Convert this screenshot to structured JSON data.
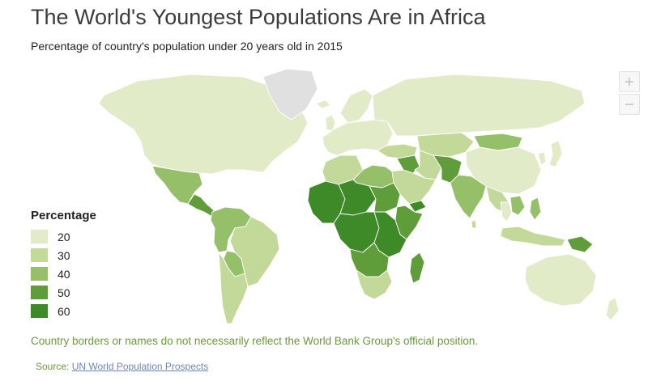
{
  "title": "The World's Youngest Populations Are in Africa",
  "subtitle": "Percentage of country's population under 20 years old in 2015",
  "legend": {
    "title": "Percentage",
    "items": [
      {
        "label": "20",
        "color": "#e2ebc8"
      },
      {
        "label": "30",
        "color": "#c2d99a"
      },
      {
        "label": "40",
        "color": "#96bf6a"
      },
      {
        "label": "50",
        "color": "#5e9d3a"
      },
      {
        "label": "60",
        "color": "#3f8a28"
      }
    ]
  },
  "zoom": {
    "in_icon": "zoom-in-icon",
    "out_icon": "zoom-out-icon"
  },
  "disclaimer": "Country borders or names do not necessarily reflect the World Bank Group's official position.",
  "source": {
    "prefix": "Source:",
    "link_text": "UN World Population Prospects"
  },
  "colors": {
    "accent_text": "#6a9a3c",
    "link": "#6b89b8",
    "no_data": "#e0e0e0",
    "border": "#ffffff"
  },
  "regions": [
    {
      "name": "north-america",
      "bin": 0
    },
    {
      "name": "greenland",
      "bin": -1
    },
    {
      "name": "mexico",
      "bin": 2
    },
    {
      "name": "central-america",
      "bin": 3
    },
    {
      "name": "south-america-north",
      "bin": 2
    },
    {
      "name": "brazil",
      "bin": 1
    },
    {
      "name": "south-america-south",
      "bin": 1
    },
    {
      "name": "bolivia-paraguay",
      "bin": 2
    },
    {
      "name": "europe",
      "bin": 0
    },
    {
      "name": "iceland",
      "bin": 0
    },
    {
      "name": "uk-ireland",
      "bin": 0
    },
    {
      "name": "scandinavia",
      "bin": 0
    },
    {
      "name": "russia",
      "bin": 0
    },
    {
      "name": "turkey-caucasus",
      "bin": 1
    },
    {
      "name": "central-asia",
      "bin": 1
    },
    {
      "name": "mongolia",
      "bin": 2
    },
    {
      "name": "china",
      "bin": 0
    },
    {
      "name": "korea",
      "bin": 0
    },
    {
      "name": "japan",
      "bin": 0
    },
    {
      "name": "middle-east",
      "bin": 1
    },
    {
      "name": "iraq-syria",
      "bin": 3
    },
    {
      "name": "iran",
      "bin": 1
    },
    {
      "name": "afghanistan-pakistan",
      "bin": 3
    },
    {
      "name": "india",
      "bin": 2
    },
    {
      "name": "sri-lanka",
      "bin": 1
    },
    {
      "name": "southeast-asia",
      "bin": 1
    },
    {
      "name": "thailand",
      "bin": 0
    },
    {
      "name": "laos-cambodia",
      "bin": 2
    },
    {
      "name": "philippines",
      "bin": 2
    },
    {
      "name": "indonesia",
      "bin": 1
    },
    {
      "name": "papua-new-guinea",
      "bin": 3
    },
    {
      "name": "australia",
      "bin": 0
    },
    {
      "name": "new-zealand",
      "bin": 0
    },
    {
      "name": "north-africa",
      "bin": 1
    },
    {
      "name": "egypt-libya",
      "bin": 2
    },
    {
      "name": "west-africa",
      "bin": 4
    },
    {
      "name": "sahel",
      "bin": 4
    },
    {
      "name": "sudan",
      "bin": 3
    },
    {
      "name": "horn-of-africa",
      "bin": 3
    },
    {
      "name": "yemen",
      "bin": 4
    },
    {
      "name": "central-africa",
      "bin": 4
    },
    {
      "name": "east-africa",
      "bin": 4
    },
    {
      "name": "southern-africa-mid",
      "bin": 3
    },
    {
      "name": "southern-africa",
      "bin": 1
    },
    {
      "name": "madagascar",
      "bin": 3
    }
  ]
}
